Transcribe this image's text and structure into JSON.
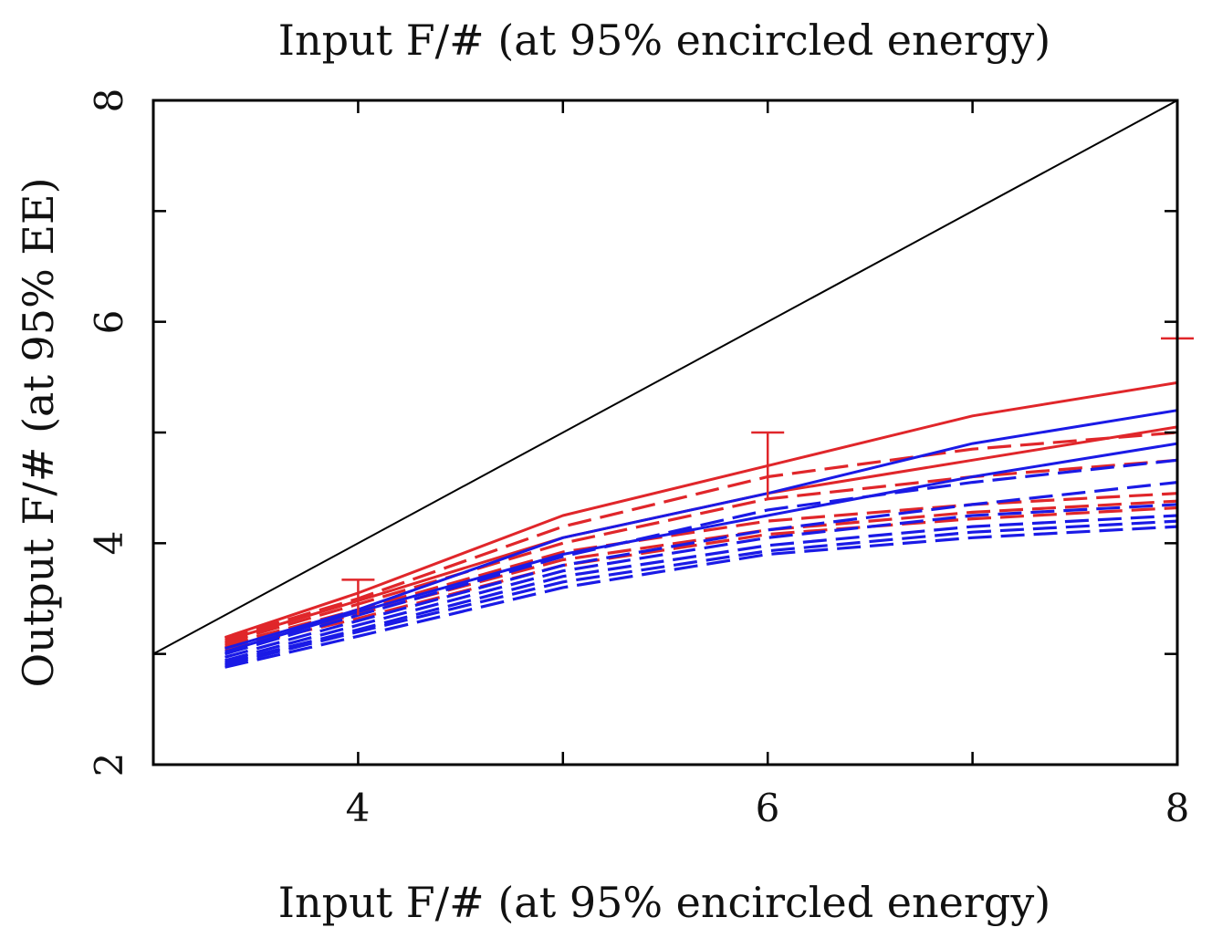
{
  "chart_data": {
    "type": "line",
    "title": "Input F/# (at 95% encircled energy)",
    "xlabel": "Input F/# (at 95% encircled energy)",
    "ylabel": "Output F/# (at 95% EE)",
    "xlim": [
      3,
      8
    ],
    "ylim": [
      2,
      8
    ],
    "x_ticks": [
      "4",
      "6",
      "8"
    ],
    "y_ticks": [
      "2",
      "4",
      "6",
      "8"
    ],
    "colors": {
      "red": "#e0262a",
      "blue": "#1a1ae6",
      "reference": "#000000"
    },
    "reference_line": {
      "name": "y = x",
      "x": [
        3,
        8
      ],
      "y": [
        3,
        8
      ]
    },
    "series": [
      {
        "name": "red-solid-upper",
        "color": "red",
        "style": "solid",
        "x": [
          3.35,
          4,
          5,
          6,
          7,
          8
        ],
        "y": [
          3.15,
          3.55,
          4.25,
          4.7,
          5.15,
          5.45
        ]
      },
      {
        "name": "red-solid-lower",
        "color": "red",
        "style": "solid",
        "x": [
          3.35,
          4,
          5,
          6,
          7,
          8
        ],
        "y": [
          3.12,
          3.48,
          4.05,
          4.45,
          4.75,
          5.05
        ]
      },
      {
        "name": "blue-solid-upper",
        "color": "blue",
        "style": "solid",
        "x": [
          3.35,
          4,
          5,
          6,
          7,
          8
        ],
        "y": [
          3.05,
          3.4,
          4.05,
          4.45,
          4.9,
          5.2
        ]
      },
      {
        "name": "blue-solid-lower",
        "color": "blue",
        "style": "solid",
        "x": [
          3.35,
          4,
          5,
          6,
          7,
          8
        ],
        "y": [
          3.02,
          3.38,
          3.9,
          4.25,
          4.6,
          4.9
        ]
      },
      {
        "name": "red-dashed-1",
        "color": "red",
        "style": "dashed",
        "x": [
          3.35,
          4,
          5,
          6,
          7,
          8
        ],
        "y": [
          3.14,
          3.5,
          4.15,
          4.6,
          4.85,
          5.0
        ]
      },
      {
        "name": "red-dashed-2",
        "color": "red",
        "style": "dashed",
        "x": [
          3.35,
          4,
          5,
          6,
          7,
          8
        ],
        "y": [
          3.1,
          3.45,
          4.0,
          4.4,
          4.6,
          4.75
        ]
      },
      {
        "name": "red-dashed-3",
        "color": "red",
        "style": "dashed",
        "x": [
          3.35,
          4,
          5,
          6,
          7,
          8
        ],
        "y": [
          3.08,
          3.4,
          3.92,
          4.2,
          4.35,
          4.45
        ]
      },
      {
        "name": "red-dashed-4",
        "color": "red",
        "style": "dashed",
        "x": [
          3.35,
          4,
          5,
          6,
          7,
          8
        ],
        "y": [
          3.06,
          3.36,
          3.85,
          4.12,
          4.28,
          4.38
        ]
      },
      {
        "name": "red-dashed-5",
        "color": "red",
        "style": "dashed",
        "x": [
          3.35,
          4,
          5,
          6,
          7,
          8
        ],
        "y": [
          3.04,
          3.32,
          3.8,
          4.08,
          4.22,
          4.32
        ]
      },
      {
        "name": "blue-dashed-1",
        "color": "blue",
        "style": "dashed",
        "x": [
          3.35,
          4,
          5,
          6,
          7,
          8
        ],
        "y": [
          3.0,
          3.35,
          3.88,
          4.3,
          4.55,
          4.75
        ]
      },
      {
        "name": "blue-dashed-2",
        "color": "blue",
        "style": "dashed",
        "x": [
          3.35,
          4,
          5,
          6,
          7,
          8
        ],
        "y": [
          2.97,
          3.3,
          3.8,
          4.12,
          4.35,
          4.55
        ]
      },
      {
        "name": "blue-dashed-3",
        "color": "blue",
        "style": "dashed",
        "x": [
          3.35,
          4,
          5,
          6,
          7,
          8
        ],
        "y": [
          2.94,
          3.26,
          3.75,
          4.05,
          4.25,
          4.35
        ]
      },
      {
        "name": "blue-dashed-4",
        "color": "blue",
        "style": "dashed",
        "x": [
          3.35,
          4,
          5,
          6,
          7,
          8
        ],
        "y": [
          2.92,
          3.22,
          3.7,
          3.98,
          4.15,
          4.25
        ]
      },
      {
        "name": "blue-dashed-5",
        "color": "blue",
        "style": "dashed",
        "x": [
          3.35,
          4,
          5,
          6,
          7,
          8
        ],
        "y": [
          2.9,
          3.2,
          3.65,
          3.93,
          4.1,
          4.2
        ]
      },
      {
        "name": "blue-dashed-6",
        "color": "blue",
        "style": "dashed",
        "x": [
          3.35,
          4,
          5,
          6,
          7,
          8
        ],
        "y": [
          2.88,
          3.16,
          3.6,
          3.9,
          4.05,
          4.15
        ]
      }
    ],
    "error_bars": [
      {
        "x": 4,
        "y": 3.55,
        "low": 3.35,
        "high": 3.67,
        "color": "red"
      },
      {
        "x": 6,
        "y": 4.7,
        "low": 4.4,
        "high": 5.0,
        "color": "red"
      },
      {
        "x": 8,
        "y": 5.45,
        "low": 5.0,
        "high": 5.85,
        "color": "red"
      }
    ]
  }
}
